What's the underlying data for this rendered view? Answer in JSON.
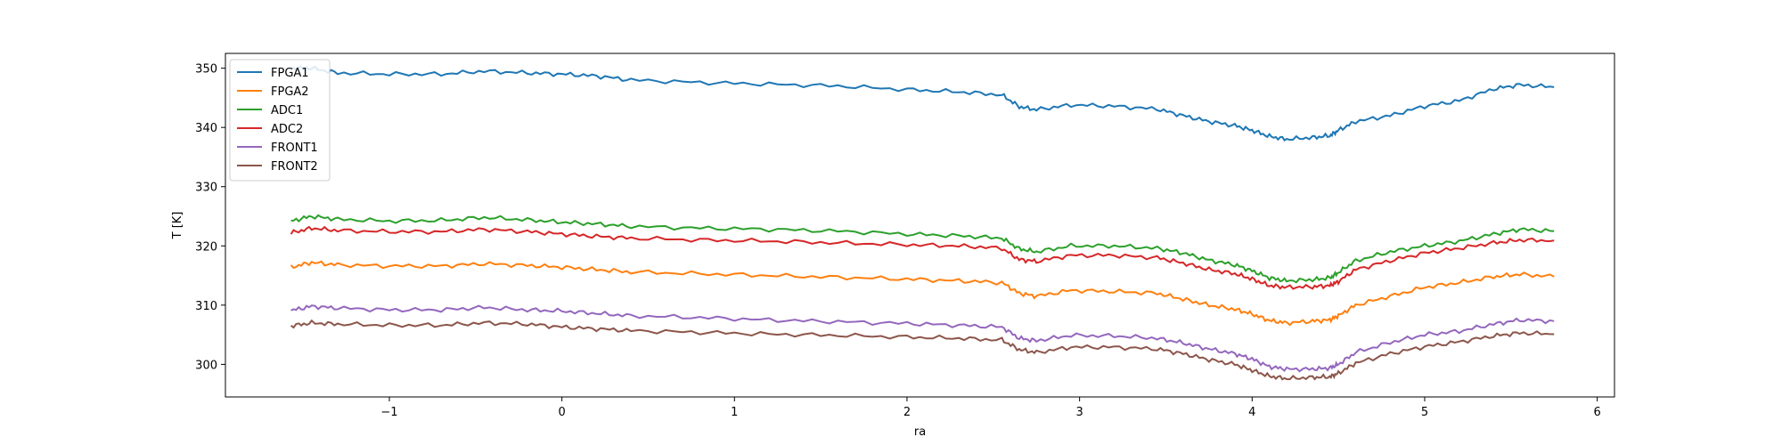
{
  "chart_data": {
    "type": "line",
    "title": "",
    "xlabel": "ra",
    "ylabel": "T [K]",
    "xlim": [
      -1.95,
      6.1
    ],
    "ylim": [
      294.5,
      352.5
    ],
    "xticks": [
      -1,
      0,
      1,
      2,
      3,
      4,
      5,
      6
    ],
    "yticks": [
      300,
      310,
      320,
      330,
      340,
      350
    ],
    "xtick_labels": [
      "−1",
      "0",
      "1",
      "2",
      "3",
      "4",
      "5",
      "6"
    ],
    "ytick_labels": [
      "300",
      "310",
      "320",
      "330",
      "340",
      "350"
    ],
    "grid": false,
    "legend_position": "top-left",
    "x": [
      -1.57,
      -1.45,
      -1.3,
      -1.0,
      -0.7,
      -0.45,
      -0.2,
      0.0,
      0.2,
      0.4,
      0.8,
      1.2,
      1.6,
      2.0,
      2.3,
      2.55,
      2.65,
      2.75,
      2.95,
      3.2,
      3.45,
      3.6,
      3.75,
      3.9,
      4.0,
      4.1,
      4.2,
      4.35,
      4.45,
      4.5,
      4.6,
      4.8,
      5.0,
      5.2,
      5.4,
      5.55,
      5.75
    ],
    "series": [
      {
        "name": "FPGA1",
        "color": "#1f77b4",
        "values": [
          350.0,
          350.0,
          349.2,
          349.0,
          349.0,
          349.5,
          349.2,
          349.0,
          348.7,
          348.0,
          347.6,
          347.3,
          347.0,
          346.4,
          346.0,
          345.5,
          343.5,
          343.0,
          343.8,
          343.6,
          343.1,
          342.0,
          341.0,
          340.3,
          339.5,
          338.5,
          338.0,
          338.3,
          338.6,
          339.5,
          341.0,
          342.0,
          343.6,
          344.5,
          346.5,
          347.2,
          346.8
        ]
      },
      {
        "name": "FPGA2",
        "color": "#ff7f0e",
        "values": [
          316.4,
          317.2,
          316.8,
          316.6,
          316.6,
          317.0,
          316.7,
          316.4,
          316.0,
          315.6,
          315.3,
          315.0,
          314.7,
          314.4,
          314.1,
          313.8,
          312.0,
          311.5,
          312.5,
          312.3,
          312.0,
          311.0,
          310.0,
          309.3,
          308.5,
          307.4,
          307.0,
          307.3,
          307.5,
          308.2,
          310.0,
          311.5,
          313.0,
          313.8,
          314.8,
          315.2,
          314.8
        ]
      },
      {
        "name": "ADC1",
        "color": "#2ca02c",
        "values": [
          324.2,
          325.0,
          324.5,
          324.2,
          324.3,
          324.8,
          324.4,
          324.0,
          323.7,
          323.3,
          323.0,
          322.8,
          322.5,
          322.0,
          321.7,
          321.3,
          319.5,
          319.0,
          320.0,
          320.0,
          319.6,
          318.8,
          317.6,
          316.8,
          315.8,
          314.6,
          314.1,
          314.3,
          314.6,
          315.5,
          317.5,
          319.0,
          320.0,
          320.8,
          322.0,
          322.8,
          322.5
        ]
      },
      {
        "name": "ADC2",
        "color": "#d62728",
        "values": [
          322.2,
          323.0,
          322.6,
          322.4,
          322.4,
          322.8,
          322.4,
          322.0,
          321.6,
          321.3,
          321.0,
          320.8,
          320.5,
          320.2,
          320.0,
          319.6,
          317.7,
          317.4,
          318.4,
          318.4,
          318.0,
          317.1,
          316.0,
          315.3,
          314.4,
          313.3,
          313.0,
          313.1,
          313.3,
          314.0,
          316.0,
          317.5,
          318.8,
          319.6,
          320.5,
          321.0,
          320.9
        ]
      },
      {
        "name": "FRONT1",
        "color": "#9467bd",
        "values": [
          309.1,
          309.8,
          309.5,
          309.2,
          309.2,
          309.6,
          309.2,
          309.0,
          308.6,
          308.2,
          307.9,
          307.5,
          307.2,
          306.9,
          306.6,
          306.3,
          304.4,
          304.0,
          304.9,
          304.8,
          304.4,
          303.6,
          302.6,
          301.8,
          300.9,
          299.6,
          299.2,
          299.2,
          299.4,
          300.0,
          302.0,
          303.7,
          305.0,
          305.6,
          306.8,
          307.5,
          307.3
        ]
      },
      {
        "name": "FRONT2",
        "color": "#8c564b",
        "values": [
          306.5,
          307.0,
          306.8,
          306.6,
          306.6,
          307.0,
          306.8,
          306.3,
          306.0,
          305.7,
          305.4,
          305.1,
          304.9,
          304.6,
          304.4,
          304.1,
          302.5,
          302.0,
          302.9,
          302.9,
          302.6,
          301.8,
          300.8,
          300.0,
          299.0,
          298.0,
          297.6,
          297.8,
          297.9,
          298.5,
          300.2,
          301.8,
          303.0,
          303.8,
          304.8,
          305.3,
          305.1
        ]
      }
    ]
  }
}
